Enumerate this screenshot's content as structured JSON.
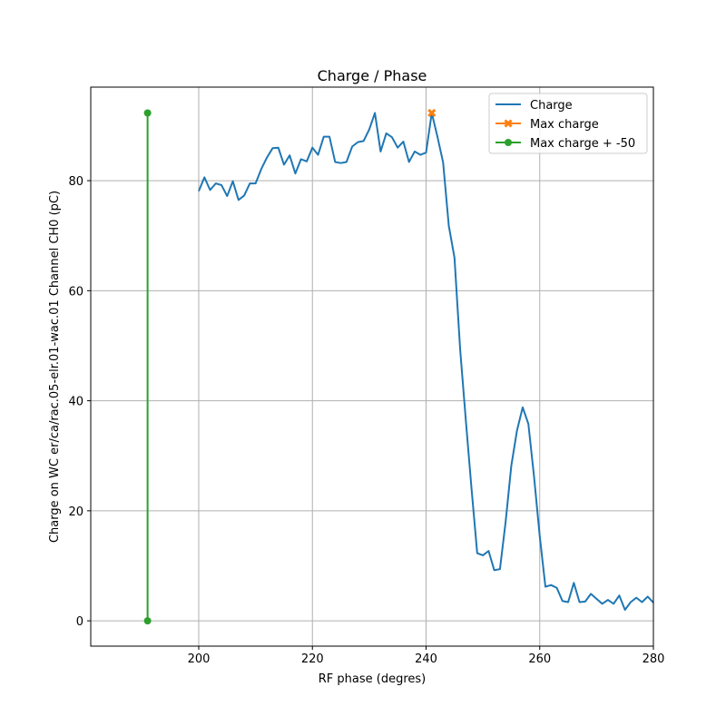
{
  "chart_data": {
    "type": "line",
    "title": "Charge / Phase",
    "xlabel": "RF phase (degres)",
    "ylabel": "Charge on WC er/ca/rac.05-elr.01-wac.01 Channel CH0 (pC)",
    "xlim": [
      181,
      280
    ],
    "ylim": [
      -4.6,
      97
    ],
    "xticks": [
      200,
      220,
      240,
      260,
      280
    ],
    "yticks": [
      0,
      20,
      40,
      60,
      80
    ],
    "grid": true,
    "legend_position": "top-right",
    "series": [
      {
        "name": "Charge",
        "color": "#1f77b4",
        "marker": "none",
        "x": [
          200,
          201,
          202,
          203,
          204,
          205,
          206,
          207,
          208,
          209,
          210,
          211,
          212,
          213,
          214,
          215,
          216,
          217,
          218,
          219,
          220,
          221,
          222,
          223,
          224,
          225,
          226,
          227,
          228,
          229,
          230,
          231,
          232,
          233,
          234,
          235,
          236,
          237,
          238,
          239,
          240,
          241,
          242,
          243,
          244,
          245,
          246,
          247,
          248,
          249,
          250,
          251,
          252,
          253,
          254,
          255,
          256,
          257,
          258,
          259,
          260,
          261,
          262,
          263,
          264,
          265,
          266,
          267,
          268,
          269,
          270,
          271,
          272,
          273,
          274,
          275,
          276,
          277,
          278,
          279,
          280
        ],
        "y": [
          78.1,
          80.6,
          78.3,
          79.5,
          79.2,
          77.2,
          79.9,
          76.5,
          77.3,
          79.5,
          79.5,
          82.1,
          84.2,
          85.9,
          86.0,
          82.9,
          84.6,
          81.3,
          83.9,
          83.5,
          86.0,
          84.7,
          88.0,
          88.0,
          83.4,
          83.2,
          83.4,
          86.2,
          87.0,
          87.2,
          89.3,
          92.3,
          85.3,
          88.6,
          87.9,
          86.0,
          87.1,
          83.4,
          85.3,
          84.7,
          85.1,
          92.3,
          88.0,
          83.3,
          71.8,
          66.0,
          49.3,
          36.4,
          24.0,
          12.3,
          11.9,
          12.7,
          9.2,
          9.4,
          18.0,
          28.2,
          34.6,
          38.8,
          35.8,
          26.2,
          15.4,
          6.2,
          6.5,
          6.0,
          3.6,
          3.4,
          6.9,
          3.4,
          3.5,
          4.9,
          4.0,
          3.1,
          3.8,
          3.1,
          4.6,
          2.0,
          3.4,
          4.2,
          3.4,
          4.4,
          3.3
        ]
      },
      {
        "name": "Max charge",
        "color": "#ff7f0e",
        "marker": "X",
        "x": [
          241
        ],
        "y": [
          92.3
        ]
      },
      {
        "name": "Max charge + -50",
        "color": "#2ca02c",
        "marker": "o",
        "x": [
          191,
          191
        ],
        "y": [
          0,
          92.3
        ]
      }
    ]
  }
}
